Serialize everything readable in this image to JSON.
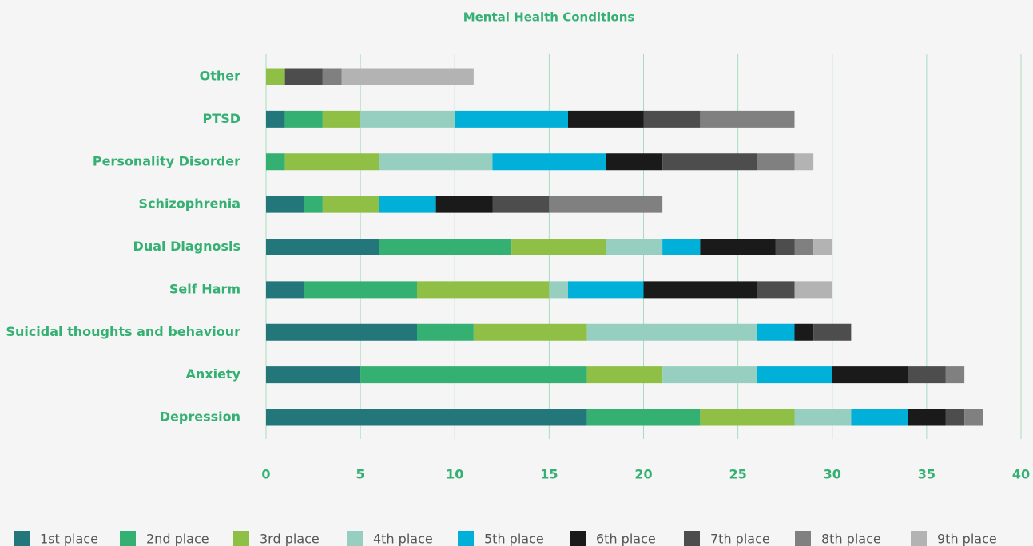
{
  "chart_data": {
    "type": "stacked-barh",
    "title": "Mental Health Conditions",
    "categories": [
      "Other",
      "PTSD",
      "Personality Disorder",
      "Schizophrenia",
      "Dual Diagnosis",
      "Self Harm",
      "Suicidal thoughts and behaviour",
      "Anxiety",
      "Depression"
    ],
    "series": [
      {
        "name": "1st place",
        "color": "#23767a",
        "values": [
          0,
          1,
          0,
          2,
          6,
          2,
          8,
          5,
          17
        ]
      },
      {
        "name": "2nd place",
        "color": "#35b073",
        "values": [
          0,
          2,
          1,
          1,
          7,
          6,
          3,
          12,
          6
        ]
      },
      {
        "name": "3rd place",
        "color": "#8fbf45",
        "values": [
          1,
          2,
          5,
          3,
          5,
          7,
          6,
          4,
          5
        ]
      },
      {
        "name": "4th place",
        "color": "#96cfc0",
        "values": [
          0,
          5,
          6,
          0,
          3,
          1,
          9,
          5,
          3
        ]
      },
      {
        "name": "5th place",
        "color": "#00b0d8",
        "values": [
          0,
          6,
          6,
          3,
          2,
          4,
          2,
          4,
          3
        ]
      },
      {
        "name": "6th place",
        "color": "#1a1a1a",
        "values": [
          0,
          4,
          3,
          3,
          4,
          6,
          1,
          4,
          2
        ]
      },
      {
        "name": "7th place",
        "color": "#4d4d4d",
        "values": [
          2,
          3,
          5,
          3,
          1,
          2,
          2,
          2,
          1
        ]
      },
      {
        "name": "8th place",
        "color": "#808080",
        "values": [
          1,
          5,
          2,
          6,
          1,
          0,
          0,
          1,
          1
        ]
      },
      {
        "name": "9th place",
        "color": "#b3b3b3",
        "values": [
          7,
          0,
          1,
          0,
          1,
          2,
          0,
          0,
          0
        ]
      }
    ],
    "xlim": [
      0,
      40
    ],
    "xticks": [
      0,
      5,
      10,
      15,
      20,
      25,
      30,
      35,
      40
    ],
    "grid": true
  }
}
